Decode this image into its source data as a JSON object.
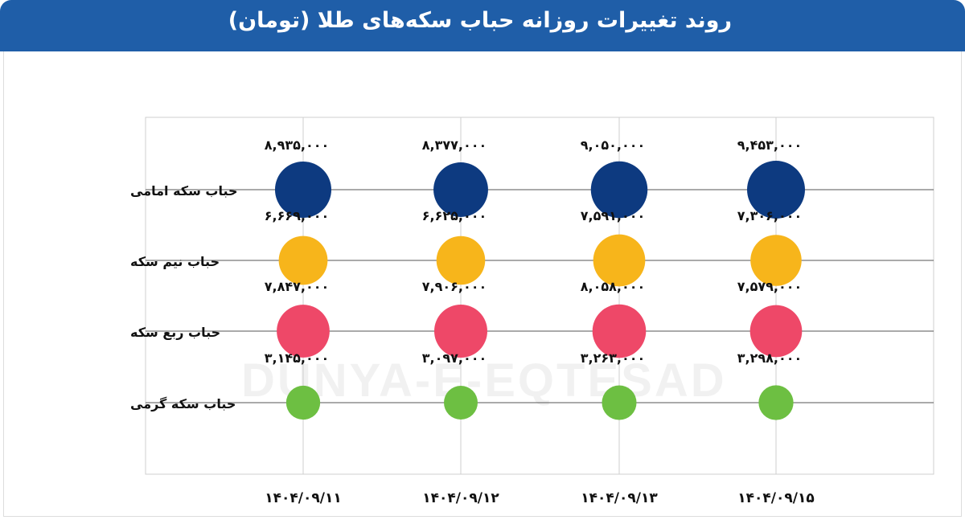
{
  "header": {
    "title": "روند تغییرات روزانه حباب سکه‌های طلا (تومان)"
  },
  "watermark": "DUNYA-E-EQTESAD",
  "colors": {
    "header_bg": "#1f5ea8",
    "grid": "#cfcfcf",
    "emami": "#0d3a80",
    "nim": "#f7b51b",
    "rob": "#ee4868",
    "gerami": "#6dbf42"
  },
  "chart_data": {
    "type": "scatter",
    "title": "روند تغییرات روزانه حباب سکه‌های طلا (تومان)",
    "x": [
      "۱۴۰۴/۰۹/۱۱",
      "۱۴۰۴/۰۹/۱۲",
      "۱۴۰۴/۰۹/۱۳",
      "۱۴۰۴/۰۹/۱۵"
    ],
    "series": [
      {
        "name": "حباب سکه امامی",
        "color": "#0d3a80",
        "values": [
          8935000,
          8377000,
          9050000,
          9453000
        ],
        "labels": [
          "۸,۹۳۵,۰۰۰",
          "۸,۳۷۷,۰۰۰",
          "۹,۰۵۰,۰۰۰",
          "۹,۴۵۳,۰۰۰"
        ]
      },
      {
        "name": "حباب نیم سکه",
        "color": "#f7b51b",
        "values": [
          6669000,
          6625000,
          7591000,
          7306000
        ],
        "labels": [
          "۶,۶۶۹,۰۰۰",
          "۶,۶۲۵,۰۰۰",
          "۷,۵۹۱,۰۰۰",
          "۷,۳۰۶,۰۰۰"
        ]
      },
      {
        "name": "حباب ربع سکه",
        "color": "#ee4868",
        "values": [
          7847000,
          7906000,
          8058000,
          7579000
        ],
        "labels": [
          "۷,۸۴۷,۰۰۰",
          "۷,۹۰۶,۰۰۰",
          "۸,۰۵۸,۰۰۰",
          "۷,۵۷۹,۰۰۰"
        ]
      },
      {
        "name": "حباب سکه گرمی",
        "color": "#6dbf42",
        "values": [
          3145000,
          3097000,
          3263000,
          3298000
        ],
        "labels": [
          "۳,۱۴۵,۰۰۰",
          "۳,۰۹۷,۰۰۰",
          "۳,۲۶۳,۰۰۰",
          "۳,۲۹۸,۰۰۰"
        ]
      }
    ],
    "grid": true,
    "legend": "none"
  }
}
